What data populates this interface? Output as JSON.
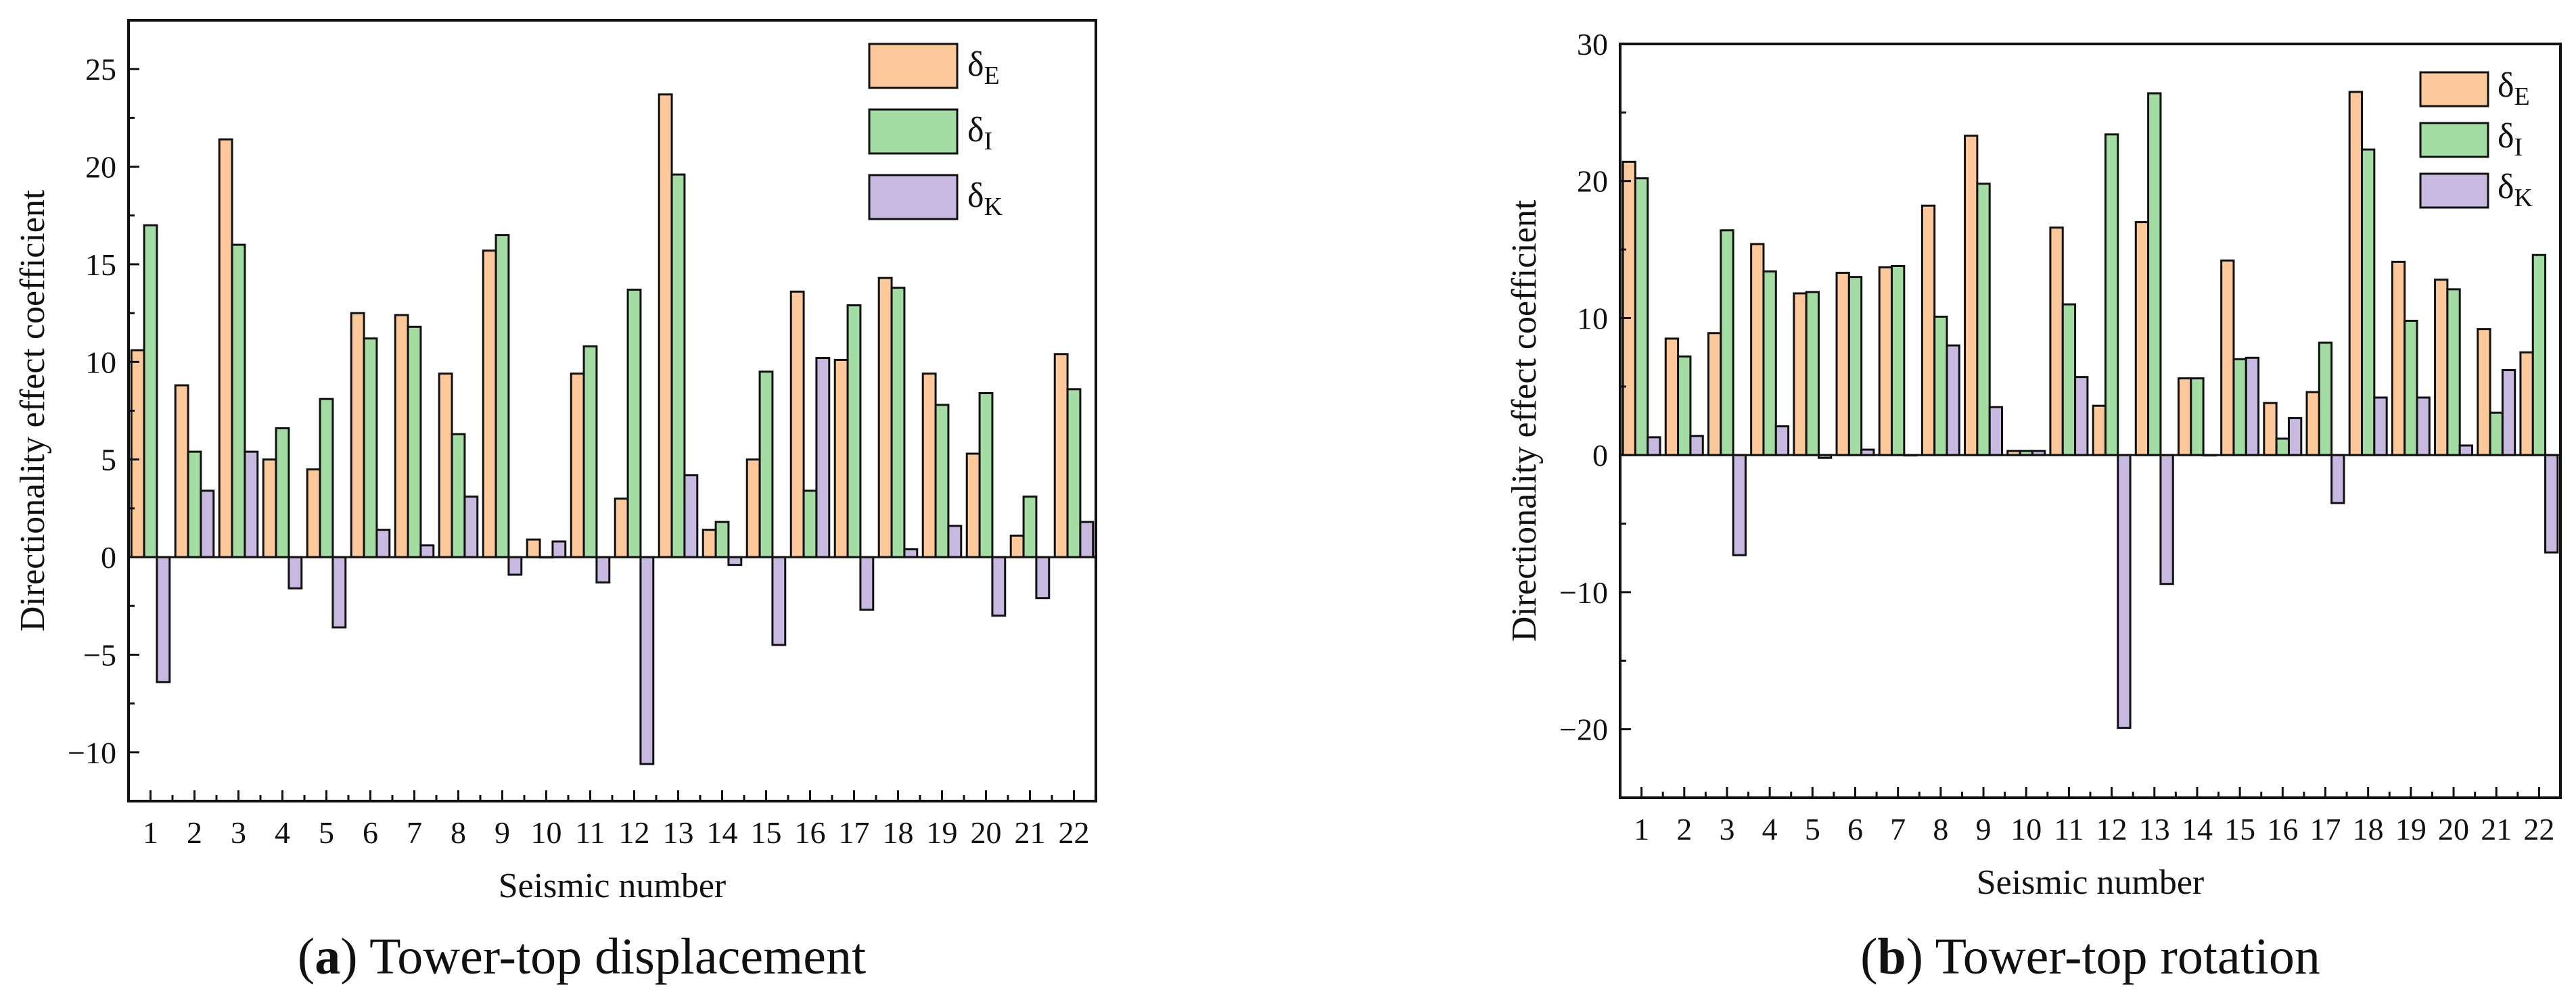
{
  "colors": {
    "E": "#FDC99A",
    "I": "#A3DDA3",
    "K": "#C7B9DF",
    "stroke": "#111111"
  },
  "chart_data": [
    {
      "type": "bar",
      "id": "a",
      "caption_letter": "a",
      "caption_text": ") Tower-top displacement",
      "xlabel": "Seismic number",
      "ylabel": "Directionality effect coefficient",
      "ylim": [
        -12.5,
        27.5
      ],
      "yticks": [
        -10,
        -5,
        0,
        5,
        10,
        15,
        20,
        25
      ],
      "ytick_labels": [
        "−10",
        "−5",
        "0",
        "5",
        "10",
        "15",
        "20",
        "25"
      ],
      "categories": [
        "1",
        "2",
        "3",
        "4",
        "5",
        "6",
        "7",
        "8",
        "9",
        "10",
        "11",
        "12",
        "13",
        "14",
        "15",
        "16",
        "17",
        "18",
        "19",
        "20",
        "21",
        "22"
      ],
      "legend": {
        "position": "top-right",
        "symbol": "δ"
      },
      "series": [
        {
          "key": "E",
          "name": "δE",
          "sub": "E",
          "values": [
            10.6,
            8.8,
            21.4,
            5.0,
            4.5,
            12.5,
            12.4,
            9.4,
            15.7,
            0.9,
            9.4,
            3.0,
            23.7,
            1.4,
            5.0,
            13.6,
            10.1,
            14.3,
            9.4,
            5.3,
            1.1,
            10.4
          ]
        },
        {
          "key": "I",
          "name": "δI",
          "sub": "I",
          "values": [
            17.0,
            5.4,
            16.0,
            6.6,
            8.1,
            11.2,
            11.8,
            6.3,
            16.5,
            0.0,
            10.8,
            13.7,
            19.6,
            1.8,
            9.5,
            3.4,
            12.9,
            13.8,
            7.8,
            8.4,
            3.1,
            8.6
          ]
        },
        {
          "key": "K",
          "name": "δK",
          "sub": "K",
          "values": [
            -6.4,
            3.4,
            5.4,
            -1.6,
            -3.6,
            1.4,
            0.6,
            3.1,
            -0.9,
            0.8,
            -1.3,
            -10.6,
            4.2,
            -0.4,
            -4.5,
            10.2,
            -2.7,
            0.4,
            1.6,
            -3.0,
            -2.1,
            1.8
          ]
        }
      ]
    },
    {
      "type": "bar",
      "id": "b",
      "caption_letter": "b",
      "caption_text": ") Tower-top rotation",
      "xlabel": "Seismic number",
      "ylabel": "Directionality effect coefficient",
      "ylim": [
        -25,
        30
      ],
      "yticks": [
        -20,
        -10,
        0,
        10,
        20,
        30
      ],
      "ytick_labels": [
        "−20",
        "−10",
        "0",
        "10",
        "20",
        "30"
      ],
      "categories": [
        "1",
        "2",
        "3",
        "4",
        "5",
        "6",
        "7",
        "8",
        "9",
        "10",
        "11",
        "12",
        "13",
        "14",
        "15",
        "16",
        "17",
        "18",
        "19",
        "20",
        "21",
        "22"
      ],
      "legend": {
        "position": "top-right",
        "symbol": "δ"
      },
      "series": [
        {
          "key": "E",
          "name": "δE",
          "sub": "E",
          "values": [
            21.4,
            8.5,
            8.9,
            15.4,
            11.8,
            13.3,
            13.7,
            18.2,
            23.3,
            0.3,
            16.6,
            3.6,
            17.0,
            5.6,
            14.2,
            3.8,
            4.6,
            26.5,
            14.1,
            12.8,
            9.2,
            7.5
          ]
        },
        {
          "key": "I",
          "name": "δI",
          "sub": "I",
          "values": [
            20.2,
            7.2,
            16.4,
            13.4,
            11.9,
            13.0,
            13.8,
            10.1,
            19.8,
            0.3,
            11.0,
            23.4,
            26.4,
            5.6,
            7.0,
            1.2,
            8.2,
            22.3,
            9.8,
            12.1,
            3.1,
            14.6
          ]
        },
        {
          "key": "K",
          "name": "δK",
          "sub": "K",
          "values": [
            1.3,
            1.4,
            -7.3,
            2.1,
            -0.2,
            0.4,
            0.0,
            8.0,
            3.5,
            0.3,
            5.7,
            -19.9,
            -9.4,
            0.0,
            7.1,
            2.7,
            -3.5,
            4.2,
            4.2,
            0.7,
            6.2,
            -7.1
          ]
        }
      ]
    }
  ]
}
